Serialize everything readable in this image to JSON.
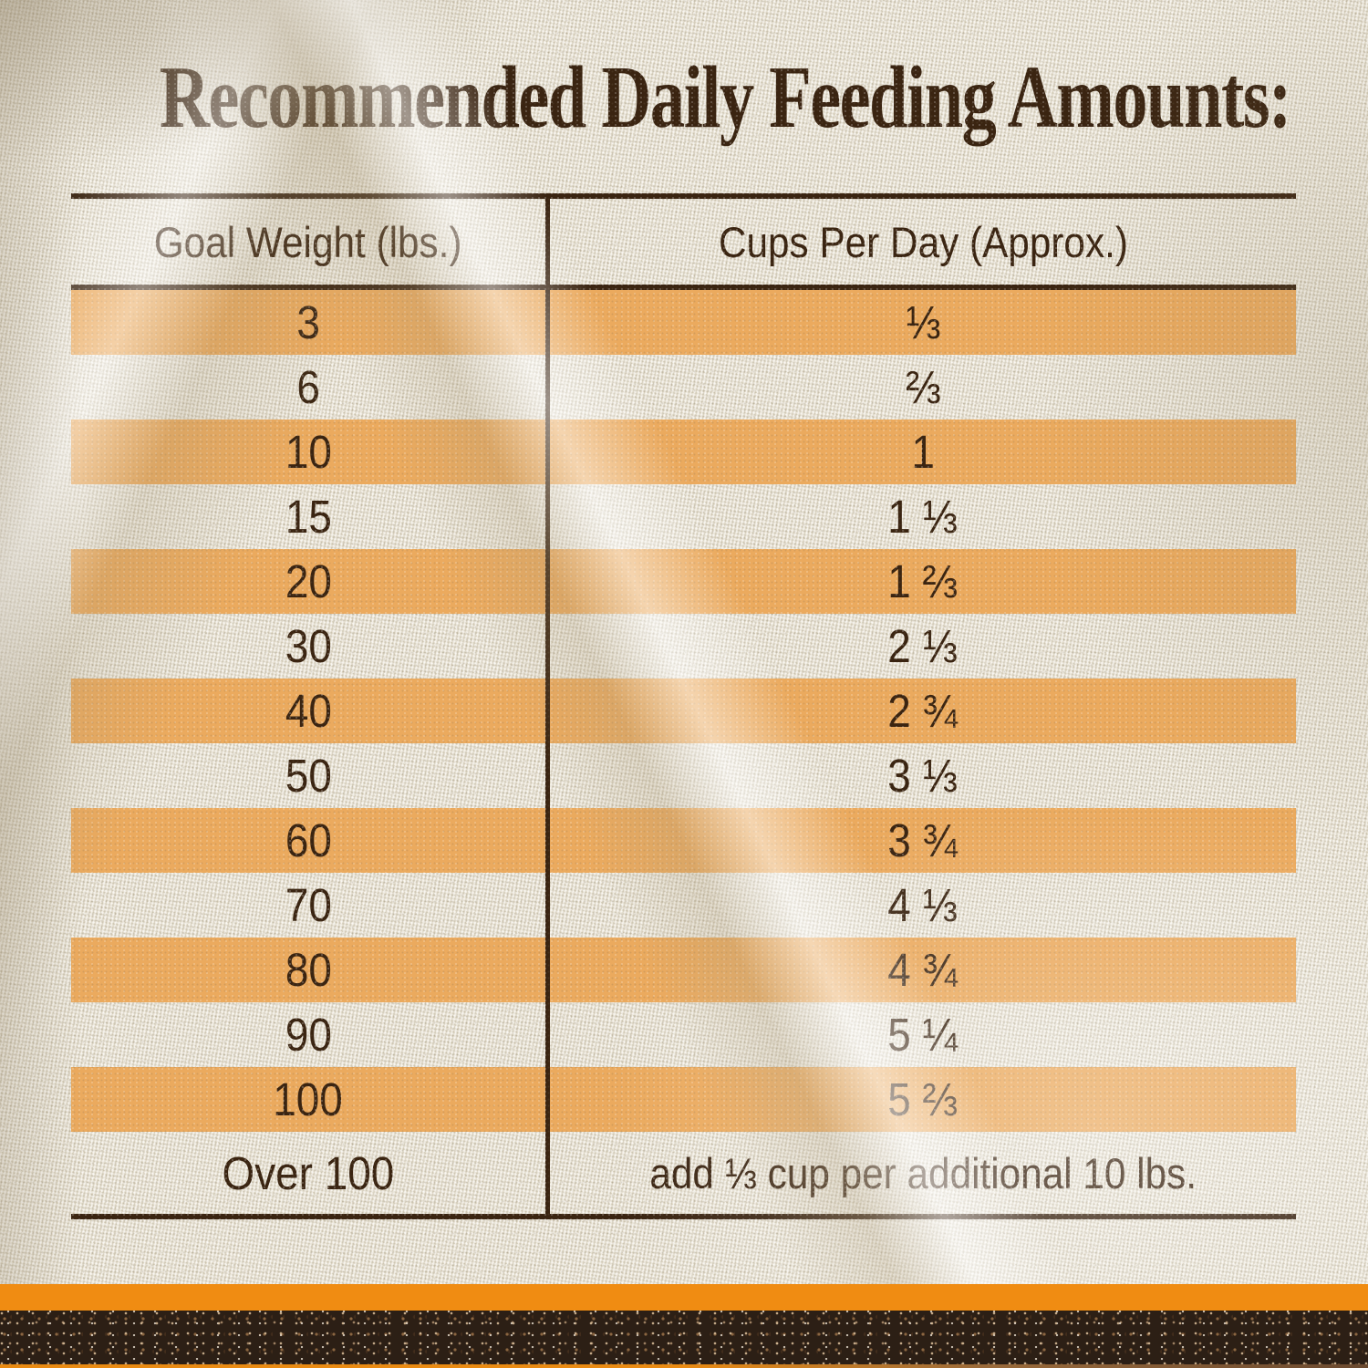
{
  "title": "Recommended Daily Feeding Amounts:",
  "table": {
    "col1_header": "Goal Weight (lbs.)",
    "col2_header": "Cups Per Day (Approx.)",
    "rows": [
      {
        "weight": "3",
        "cups": "⅓"
      },
      {
        "weight": "6",
        "cups": "⅔"
      },
      {
        "weight": "10",
        "cups": "1"
      },
      {
        "weight": "15",
        "cups": "1 ⅓"
      },
      {
        "weight": "20",
        "cups": "1 ⅔"
      },
      {
        "weight": "30",
        "cups": "2 ⅓"
      },
      {
        "weight": "40",
        "cups": "2 ¾"
      },
      {
        "weight": "50",
        "cups": "3 ⅓"
      },
      {
        "weight": "60",
        "cups": "3 ¾"
      },
      {
        "weight": "70",
        "cups": "4 ⅓"
      },
      {
        "weight": "80",
        "cups": "4 ¾"
      },
      {
        "weight": "90",
        "cups": "5 ¼"
      },
      {
        "weight": "100",
        "cups": "5 ⅔"
      },
      {
        "weight": "Over 100",
        "cups": "add ⅓ cup per additional 10 lbs."
      }
    ]
  },
  "colors": {
    "ink": "#3a2411",
    "fabric": "#e9e3d4",
    "stripe": "#ebaa5e",
    "accent_bar": "#f08c12",
    "soil": "#2c1f15"
  }
}
